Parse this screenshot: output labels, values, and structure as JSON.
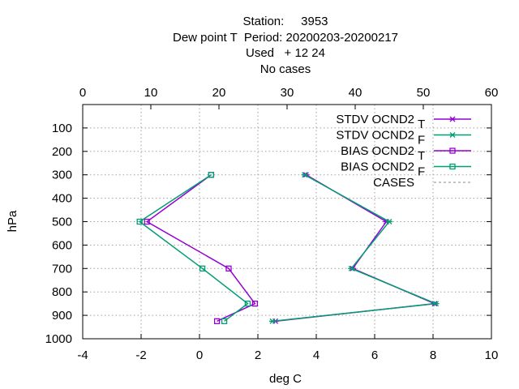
{
  "chart_data": {
    "type": "line",
    "title_lines": [
      "Station:     3953",
      "Dew point T  Period: 20200203-20200217",
      "Used   + 12 24",
      "No cases"
    ],
    "xlabel": "deg C",
    "ylabel": "hPa",
    "xlim": [
      -4,
      10
    ],
    "x_ticks": [
      "-4",
      "-2",
      "0",
      "2",
      "4",
      "6",
      "8",
      "10"
    ],
    "x2lim": [
      0,
      60
    ],
    "x2_ticks": [
      "0",
      "10",
      "20",
      "30",
      "40",
      "50",
      "60"
    ],
    "ylim": [
      0,
      1000
    ],
    "y_reversed": true,
    "y_ticks": [
      "100",
      "200",
      "300",
      "400",
      "500",
      "600",
      "700",
      "800",
      "900",
      "1000"
    ],
    "grid": true,
    "legend_position": "top-right",
    "series": [
      {
        "name": "STDV OCND2",
        "subscript": "T",
        "color": "#9400d3",
        "marker": "star",
        "points": [
          [
            3.65,
            300
          ],
          [
            6.4,
            500
          ],
          [
            5.25,
            700
          ],
          [
            8.05,
            850
          ],
          [
            2.6,
            925
          ]
        ]
      },
      {
        "name": "STDV OCND2",
        "subscript": "F",
        "color": "#009e73",
        "marker": "star",
        "points": [
          [
            3.6,
            300
          ],
          [
            6.5,
            500
          ],
          [
            5.2,
            700
          ],
          [
            8.1,
            850
          ],
          [
            2.5,
            925
          ]
        ]
      },
      {
        "name": "BIAS OCND2",
        "subscript": "T",
        "color": "#9400d3",
        "marker": "square",
        "points": [
          [
            0.4,
            300
          ],
          [
            -1.8,
            500
          ],
          [
            1.0,
            700
          ],
          [
            1.9,
            850
          ],
          [
            0.6,
            925
          ]
        ]
      },
      {
        "name": "BIAS OCND2",
        "subscript": "F",
        "color": "#009e73",
        "marker": "square",
        "points": [
          [
            0.4,
            300
          ],
          [
            -2.05,
            500
          ],
          [
            0.1,
            700
          ],
          [
            1.65,
            850
          ],
          [
            0.85,
            925
          ]
        ]
      },
      {
        "name": "CASES",
        "subscript": "",
        "color": "#a0a0a0",
        "marker": "none",
        "dashed": true,
        "axis": "x2",
        "points": []
      }
    ]
  }
}
